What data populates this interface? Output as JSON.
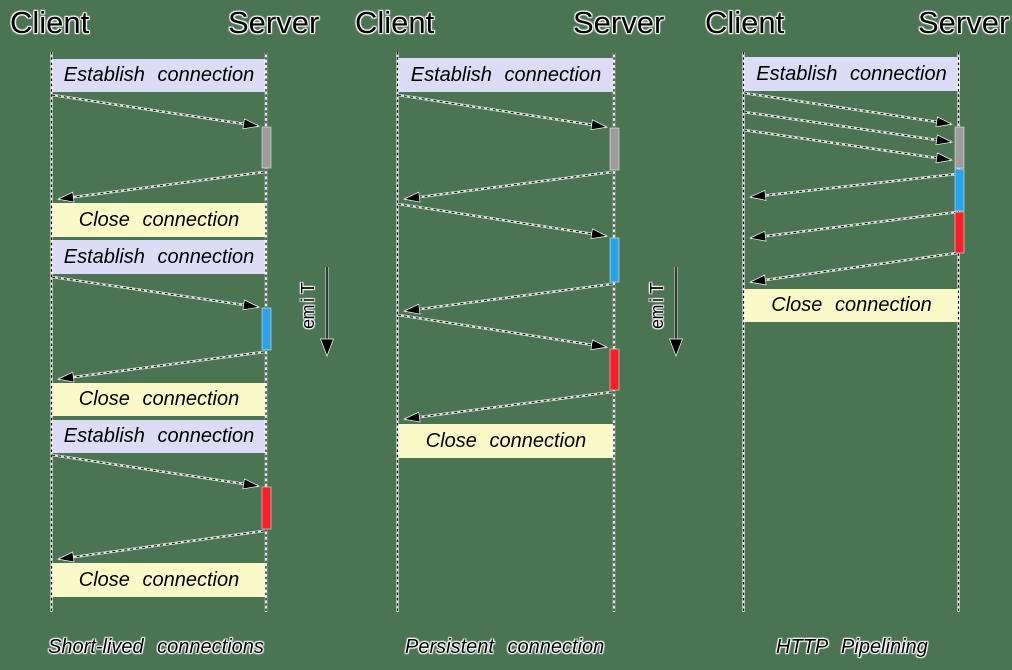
{
  "diagram": {
    "background_color": "#4b7453",
    "actors": {
      "client": "Client",
      "server": "Server"
    },
    "messages": {
      "establish": "Establish connection",
      "close": "Close connection"
    },
    "time_axis_label": "Time",
    "columns": [
      {
        "caption": "Short-lived connections"
      },
      {
        "caption": "Persistent connection"
      },
      {
        "caption": "HTTP Pipelining"
      }
    ],
    "legend_colors": {
      "establish_box": "#dcdcf6",
      "close_box": "#fafac8",
      "request_processing_bars": [
        "#9c9c9c",
        "#29a3e9",
        "#fa1e28"
      ],
      "line": "#000000"
    }
  }
}
